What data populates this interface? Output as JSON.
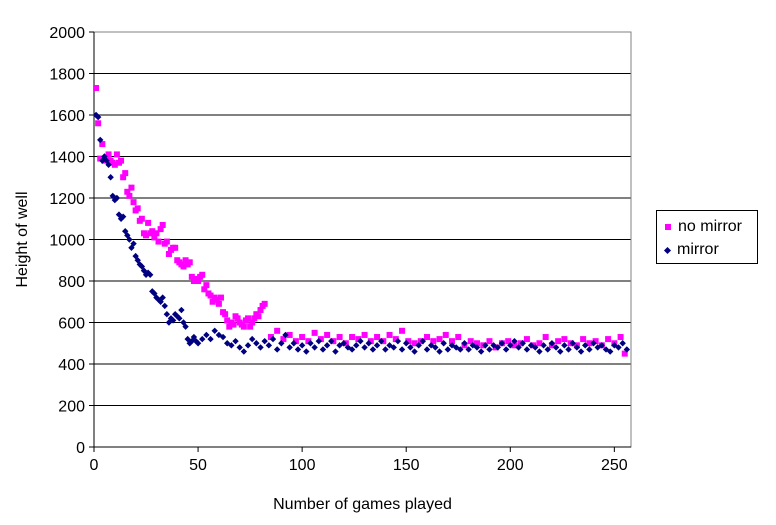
{
  "chart_data": {
    "type": "scatter",
    "xlabel": "Number of games played",
    "ylabel": "Height of well",
    "xlim": [
      0,
      258
    ],
    "ylim": [
      0,
      2000
    ],
    "x_ticks": [
      0,
      50,
      100,
      150,
      200,
      250
    ],
    "y_ticks": [
      0,
      200,
      400,
      600,
      800,
      1000,
      1200,
      1400,
      1600,
      1800,
      2000
    ],
    "grid": "horizontal",
    "legend": "right",
    "series": [
      {
        "name": "no mirror",
        "color": "#ff00ff",
        "marker": "square",
        "points": [
          [
            1,
            1730
          ],
          [
            2,
            1560
          ],
          [
            3,
            1390
          ],
          [
            4,
            1460
          ],
          [
            5,
            1380
          ],
          [
            6,
            1390
          ],
          [
            7,
            1410
          ],
          [
            8,
            1380
          ],
          [
            9,
            1370
          ],
          [
            10,
            1360
          ],
          [
            11,
            1410
          ],
          [
            12,
            1370
          ],
          [
            13,
            1380
          ],
          [
            14,
            1300
          ],
          [
            15,
            1320
          ],
          [
            16,
            1230
          ],
          [
            17,
            1210
          ],
          [
            18,
            1250
          ],
          [
            19,
            1180
          ],
          [
            20,
            1140
          ],
          [
            21,
            1150
          ],
          [
            22,
            1090
          ],
          [
            23,
            1100
          ],
          [
            24,
            1030
          ],
          [
            25,
            1020
          ],
          [
            26,
            1080
          ],
          [
            27,
            1030
          ],
          [
            28,
            1040
          ],
          [
            29,
            1010
          ],
          [
            30,
            1030
          ],
          [
            31,
            990
          ],
          [
            32,
            1050
          ],
          [
            33,
            1070
          ],
          [
            34,
            980
          ],
          [
            35,
            990
          ],
          [
            36,
            930
          ],
          [
            37,
            950
          ],
          [
            38,
            960
          ],
          [
            39,
            960
          ],
          [
            40,
            900
          ],
          [
            41,
            890
          ],
          [
            42,
            880
          ],
          [
            43,
            870
          ],
          [
            44,
            900
          ],
          [
            45,
            880
          ],
          [
            46,
            890
          ],
          [
            47,
            820
          ],
          [
            48,
            800
          ],
          [
            49,
            810
          ],
          [
            50,
            800
          ],
          [
            51,
            820
          ],
          [
            52,
            830
          ],
          [
            53,
            760
          ],
          [
            54,
            780
          ],
          [
            55,
            740
          ],
          [
            56,
            730
          ],
          [
            57,
            700
          ],
          [
            58,
            720
          ],
          [
            59,
            710
          ],
          [
            60,
            690
          ],
          [
            61,
            720
          ],
          [
            62,
            650
          ],
          [
            63,
            640
          ],
          [
            64,
            610
          ],
          [
            65,
            580
          ],
          [
            66,
            600
          ],
          [
            67,
            590
          ],
          [
            68,
            630
          ],
          [
            69,
            620
          ],
          [
            70,
            600
          ],
          [
            71,
            590
          ],
          [
            72,
            580
          ],
          [
            73,
            610
          ],
          [
            74,
            620
          ],
          [
            75,
            580
          ],
          [
            76,
            600
          ],
          [
            77,
            620
          ],
          [
            78,
            640
          ],
          [
            79,
            630
          ],
          [
            80,
            660
          ],
          [
            81,
            680
          ],
          [
            82,
            690
          ],
          [
            85,
            530
          ],
          [
            88,
            560
          ],
          [
            91,
            520
          ],
          [
            94,
            540
          ],
          [
            97,
            510
          ],
          [
            100,
            530
          ],
          [
            103,
            510
          ],
          [
            106,
            550
          ],
          [
            109,
            520
          ],
          [
            112,
            540
          ],
          [
            115,
            510
          ],
          [
            118,
            530
          ],
          [
            121,
            500
          ],
          [
            124,
            530
          ],
          [
            127,
            520
          ],
          [
            130,
            540
          ],
          [
            133,
            510
          ],
          [
            136,
            530
          ],
          [
            139,
            510
          ],
          [
            142,
            540
          ],
          [
            145,
            520
          ],
          [
            148,
            560
          ],
          [
            151,
            510
          ],
          [
            154,
            500
          ],
          [
            157,
            510
          ],
          [
            160,
            530
          ],
          [
            163,
            510
          ],
          [
            166,
            520
          ],
          [
            169,
            540
          ],
          [
            172,
            510
          ],
          [
            175,
            530
          ],
          [
            178,
            490
          ],
          [
            181,
            510
          ],
          [
            184,
            500
          ],
          [
            187,
            490
          ],
          [
            190,
            510
          ],
          [
            193,
            480
          ],
          [
            196,
            500
          ],
          [
            199,
            510
          ],
          [
            202,
            490
          ],
          [
            205,
            500
          ],
          [
            208,
            520
          ],
          [
            211,
            490
          ],
          [
            214,
            500
          ],
          [
            217,
            530
          ],
          [
            220,
            490
          ],
          [
            223,
            510
          ],
          [
            226,
            520
          ],
          [
            229,
            500
          ],
          [
            232,
            490
          ],
          [
            235,
            520
          ],
          [
            238,
            500
          ],
          [
            241,
            510
          ],
          [
            244,
            490
          ],
          [
            247,
            520
          ],
          [
            250,
            500
          ],
          [
            253,
            530
          ],
          [
            255,
            450
          ]
        ]
      },
      {
        "name": "mirror",
        "color": "#000080",
        "marker": "diamond",
        "points": [
          [
            1,
            1600
          ],
          [
            2,
            1590
          ],
          [
            3,
            1480
          ],
          [
            4,
            1380
          ],
          [
            5,
            1400
          ],
          [
            6,
            1380
          ],
          [
            7,
            1360
          ],
          [
            8,
            1300
          ],
          [
            9,
            1210
          ],
          [
            10,
            1190
          ],
          [
            11,
            1200
          ],
          [
            12,
            1120
          ],
          [
            13,
            1100
          ],
          [
            14,
            1110
          ],
          [
            15,
            1040
          ],
          [
            16,
            1020
          ],
          [
            17,
            1000
          ],
          [
            18,
            960
          ],
          [
            19,
            980
          ],
          [
            20,
            920
          ],
          [
            21,
            900
          ],
          [
            22,
            880
          ],
          [
            23,
            870
          ],
          [
            24,
            850
          ],
          [
            25,
            830
          ],
          [
            26,
            840
          ],
          [
            27,
            830
          ],
          [
            28,
            750
          ],
          [
            29,
            740
          ],
          [
            30,
            720
          ],
          [
            31,
            710
          ],
          [
            32,
            700
          ],
          [
            33,
            720
          ],
          [
            34,
            680
          ],
          [
            35,
            640
          ],
          [
            36,
            600
          ],
          [
            37,
            620
          ],
          [
            38,
            610
          ],
          [
            39,
            640
          ],
          [
            40,
            630
          ],
          [
            41,
            620
          ],
          [
            42,
            660
          ],
          [
            43,
            600
          ],
          [
            44,
            580
          ],
          [
            45,
            520
          ],
          [
            46,
            500
          ],
          [
            47,
            510
          ],
          [
            48,
            530
          ],
          [
            49,
            510
          ],
          [
            50,
            500
          ],
          [
            52,
            520
          ],
          [
            54,
            540
          ],
          [
            56,
            520
          ],
          [
            58,
            560
          ],
          [
            60,
            540
          ],
          [
            62,
            530
          ],
          [
            64,
            500
          ],
          [
            66,
            490
          ],
          [
            68,
            510
          ],
          [
            70,
            480
          ],
          [
            72,
            460
          ],
          [
            74,
            490
          ],
          [
            76,
            520
          ],
          [
            78,
            500
          ],
          [
            80,
            480
          ],
          [
            82,
            510
          ],
          [
            84,
            490
          ],
          [
            86,
            520
          ],
          [
            88,
            470
          ],
          [
            90,
            500
          ],
          [
            92,
            540
          ],
          [
            94,
            480
          ],
          [
            96,
            500
          ],
          [
            98,
            470
          ],
          [
            100,
            490
          ],
          [
            102,
            460
          ],
          [
            104,
            500
          ],
          [
            106,
            480
          ],
          [
            108,
            510
          ],
          [
            110,
            470
          ],
          [
            112,
            490
          ],
          [
            114,
            510
          ],
          [
            116,
            460
          ],
          [
            118,
            490
          ],
          [
            120,
            500
          ],
          [
            122,
            480
          ],
          [
            124,
            470
          ],
          [
            126,
            490
          ],
          [
            128,
            510
          ],
          [
            130,
            480
          ],
          [
            132,
            500
          ],
          [
            134,
            470
          ],
          [
            136,
            490
          ],
          [
            138,
            510
          ],
          [
            140,
            470
          ],
          [
            142,
            490
          ],
          [
            144,
            480
          ],
          [
            146,
            510
          ],
          [
            148,
            470
          ],
          [
            150,
            500
          ],
          [
            152,
            480
          ],
          [
            154,
            460
          ],
          [
            156,
            490
          ],
          [
            158,
            510
          ],
          [
            160,
            470
          ],
          [
            162,
            490
          ],
          [
            164,
            480
          ],
          [
            166,
            460
          ],
          [
            168,
            500
          ],
          [
            170,
            470
          ],
          [
            172,
            490
          ],
          [
            174,
            480
          ],
          [
            176,
            470
          ],
          [
            178,
            500
          ],
          [
            180,
            470
          ],
          [
            182,
            490
          ],
          [
            184,
            480
          ],
          [
            186,
            460
          ],
          [
            188,
            490
          ],
          [
            190,
            470
          ],
          [
            192,
            490
          ],
          [
            194,
            480
          ],
          [
            196,
            500
          ],
          [
            198,
            470
          ],
          [
            200,
            490
          ],
          [
            202,
            510
          ],
          [
            204,
            480
          ],
          [
            206,
            500
          ],
          [
            208,
            470
          ],
          [
            210,
            490
          ],
          [
            212,
            480
          ],
          [
            214,
            460
          ],
          [
            216,
            490
          ],
          [
            218,
            470
          ],
          [
            220,
            500
          ],
          [
            222,
            480
          ],
          [
            224,
            460
          ],
          [
            226,
            490
          ],
          [
            228,
            470
          ],
          [
            230,
            500
          ],
          [
            232,
            480
          ],
          [
            234,
            460
          ],
          [
            236,
            490
          ],
          [
            238,
            470
          ],
          [
            240,
            500
          ],
          [
            242,
            480
          ],
          [
            244,
            490
          ],
          [
            246,
            470
          ],
          [
            248,
            460
          ],
          [
            250,
            490
          ],
          [
            252,
            480
          ],
          [
            254,
            500
          ],
          [
            256,
            470
          ]
        ]
      }
    ]
  }
}
